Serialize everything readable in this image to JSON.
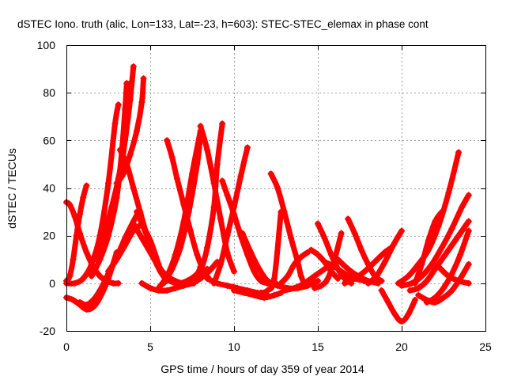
{
  "chart_data": {
    "type": "scatter",
    "title": "dSTEC Iono. truth (alic, Lon=133, Lat=-23, h=603): STEC-STEC_elemax in phase cont",
    "xlabel": "GPS time / hours of day 359 of year 2014",
    "ylabel": "dSTEC  / TECUs",
    "xlim": [
      0,
      25
    ],
    "ylim": [
      -20,
      100
    ],
    "xticks": [
      0,
      5,
      10,
      15,
      20,
      25
    ],
    "yticks": [
      -20,
      0,
      20,
      40,
      60,
      80,
      100
    ],
    "grid": true,
    "marker": "plus",
    "colors": {
      "series": "#ff0000"
    },
    "series": [
      {
        "x": [
          0.0,
          0.2,
          0.4,
          0.6,
          0.8,
          1.0,
          1.2
        ],
        "y": [
          1,
          3,
          10,
          20,
          29,
          36,
          41
        ]
      },
      {
        "x": [
          0.0,
          0.2,
          0.5,
          0.8,
          1.2,
          1.6,
          2.0,
          2.4,
          2.8,
          3.1
        ],
        "y": [
          34,
          33,
          28,
          21,
          13,
          7,
          3,
          1,
          0,
          0
        ]
      },
      {
        "x": [
          0.0,
          0.5,
          1.0,
          1.5,
          2.0,
          2.5,
          2.9,
          3.1
        ],
        "y": [
          0,
          0,
          2,
          8,
          20,
          42,
          67,
          75
        ]
      },
      {
        "x": [
          0.0,
          0.4,
          0.8,
          1.2,
          1.6,
          2.0,
          2.5,
          3.0
        ],
        "y": [
          -6,
          -7,
          -9,
          -11,
          -10,
          -6,
          2,
          13
        ]
      },
      {
        "x": [
          0.8,
          1.2,
          1.6,
          2.0,
          2.5,
          3.0,
          3.5,
          4.0,
          4.3
        ],
        "y": [
          -8,
          -9,
          -7,
          -3,
          4,
          11,
          19,
          26,
          30
        ]
      },
      {
        "x": [
          1.5,
          2.0,
          2.5,
          3.0,
          3.3,
          3.5,
          3.6
        ],
        "y": [
          3,
          10,
          20,
          36,
          55,
          73,
          84
        ]
      },
      {
        "x": [
          1.8,
          2.3,
          2.8,
          3.3,
          3.6,
          3.8
        ],
        "y": [
          10,
          20,
          32,
          50,
          67,
          84
        ]
      },
      {
        "x": [
          2.2,
          2.7,
          3.1,
          3.5,
          3.8,
          4.0
        ],
        "y": [
          20,
          32,
          44,
          60,
          77,
          91
        ]
      },
      {
        "x": [
          3.0,
          3.4,
          3.8,
          4.2,
          4.5,
          4.6
        ],
        "y": [
          42,
          46,
          54,
          64,
          76,
          86
        ]
      },
      {
        "x": [
          3.2,
          3.6,
          4.0,
          4.4,
          4.8,
          5.2,
          5.6,
          6.0
        ],
        "y": [
          56,
          50,
          40,
          30,
          20,
          11,
          5,
          1
        ]
      },
      {
        "x": [
          4.2,
          4.8,
          5.4,
          6.0,
          6.6,
          7.2,
          7.8,
          8.0
        ],
        "y": [
          30,
          20,
          9,
          2,
          0,
          1,
          4,
          7
        ]
      },
      {
        "x": [
          4.0,
          4.5,
          5.0,
          5.5,
          6.0,
          6.5,
          7.0,
          7.5,
          8.0,
          8.4
        ],
        "y": [
          25,
          19,
          13,
          7,
          3,
          1,
          0,
          1,
          3,
          6
        ]
      },
      {
        "x": [
          2.5,
          3.0,
          3.5,
          4.0,
          4.5,
          5.0,
          5.5
        ],
        "y": [
          5,
          10,
          16,
          22,
          24,
          18,
          8
        ]
      },
      {
        "x": [
          4.5,
          5.0,
          5.5,
          6.0,
          6.5,
          7.0,
          7.5,
          8.0,
          8.5,
          9.0
        ],
        "y": [
          0,
          -2,
          -3,
          -3,
          -2,
          -1,
          0,
          2,
          5,
          9
        ]
      },
      {
        "x": [
          5.5,
          6.0,
          6.5,
          7.0,
          7.5,
          8.0
        ],
        "y": [
          -2,
          3,
          12,
          26,
          46,
          64
        ]
      },
      {
        "x": [
          5.8,
          6.3,
          6.8,
          7.3,
          7.8,
          8.0
        ],
        "y": [
          0,
          6,
          15,
          30,
          50,
          62
        ]
      },
      {
        "x": [
          6.0,
          6.3,
          6.6,
          7.0,
          7.4,
          7.8,
          8.2,
          8.5
        ],
        "y": [
          60,
          53,
          44,
          33,
          22,
          12,
          5,
          2
        ]
      },
      {
        "x": [
          8.0,
          8.4,
          8.8,
          9.2,
          9.6,
          10.0
        ],
        "y": [
          66,
          56,
          42,
          27,
          13,
          5
        ]
      },
      {
        "x": [
          7.6,
          8.0,
          8.4,
          8.8,
          9.0,
          9.3
        ],
        "y": [
          0,
          5,
          15,
          32,
          50,
          67
        ]
      },
      {
        "x": [
          8.8,
          9.2,
          9.6,
          10.0,
          10.4,
          10.8
        ],
        "y": [
          0,
          8,
          20,
          32,
          45,
          57
        ]
      },
      {
        "x": [
          9.3,
          9.6,
          10.0,
          10.4,
          10.8,
          11.2,
          11.6,
          12.0
        ],
        "y": [
          43,
          37,
          29,
          20,
          12,
          5,
          1,
          0
        ]
      },
      {
        "x": [
          8.4,
          9.0,
          9.6,
          10.2,
          10.8,
          11.4,
          12.0
        ],
        "y": [
          2,
          0,
          -1,
          -2,
          -3,
          -4,
          -5
        ]
      },
      {
        "x": [
          10.5,
          11.0,
          11.5,
          12.0,
          12.5
        ],
        "y": [
          21,
          13,
          6,
          1,
          0
        ]
      },
      {
        "x": [
          10.8,
          11.2,
          11.6,
          12.0,
          12.4,
          12.8
        ],
        "y": [
          -4,
          -4,
          -4,
          -3,
          2,
          30
        ]
      },
      {
        "x": [
          10.0,
          10.6,
          11.2,
          11.8,
          12.4,
          12.8
        ],
        "y": [
          -3,
          -4,
          -5,
          -6,
          -5,
          -4
        ]
      },
      {
        "x": [
          12.2,
          12.6,
          13.0,
          13.4,
          13.8,
          14.0,
          14.2
        ],
        "y": [
          46,
          40,
          30,
          19,
          9,
          3,
          0
        ]
      },
      {
        "x": [
          12.0,
          12.6,
          13.2,
          13.8,
          14.4,
          15.0
        ],
        "y": [
          0,
          -1,
          -2,
          -2,
          -1,
          1
        ]
      },
      {
        "x": [
          12.8,
          13.2,
          13.6,
          14.0,
          14.4
        ],
        "y": [
          0,
          3,
          8,
          11,
          13
        ]
      },
      {
        "x": [
          13.0,
          13.6,
          14.2,
          14.8,
          15.4
        ],
        "y": [
          -3,
          -2,
          0,
          3,
          6
        ]
      },
      {
        "x": [
          14.6,
          15.0,
          15.4,
          15.8,
          16.2
        ],
        "y": [
          14,
          12,
          9,
          5,
          2
        ]
      },
      {
        "x": [
          15.0,
          15.4,
          15.8,
          16.2,
          16.6,
          17.0
        ],
        "y": [
          25,
          19,
          12,
          6,
          2,
          0
        ]
      },
      {
        "x": [
          14.8,
          15.2,
          15.6,
          16.0,
          16.4
        ],
        "y": [
          -2,
          -1,
          2,
          10,
          21
        ]
      },
      {
        "x": [
          15.4,
          16.0,
          16.6,
          17.2,
          17.8
        ],
        "y": [
          9,
          7,
          4,
          2,
          1
        ]
      },
      {
        "x": [
          16.2,
          16.8,
          17.4,
          18.0,
          18.6
        ],
        "y": [
          10,
          6,
          3,
          1,
          0
        ]
      },
      {
        "x": [
          16.8,
          17.2,
          17.6,
          18.0,
          18.4,
          18.8
        ],
        "y": [
          27,
          21,
          14,
          8,
          3,
          1
        ]
      },
      {
        "x": [
          16.6,
          17.2,
          17.8,
          18.4,
          19.0,
          19.4
        ],
        "y": [
          0,
          2,
          5,
          9,
          13,
          15
        ]
      },
      {
        "x": [
          18.0,
          18.5,
          19.0,
          19.5,
          20.0
        ],
        "y": [
          0,
          3,
          9,
          16,
          22
        ]
      },
      {
        "x": [
          18.8,
          19.2,
          19.6,
          20.0,
          20.4,
          20.8
        ],
        "y": [
          -3,
          -8,
          -13,
          -16,
          -13,
          -7
        ]
      },
      {
        "x": [
          19.8,
          20.4,
          21.0,
          21.6,
          22.2,
          22.8,
          23.4
        ],
        "y": [
          0,
          3,
          8,
          14,
          24,
          38,
          55
        ]
      },
      {
        "x": [
          20.0,
          20.6,
          21.2,
          21.8,
          22.4,
          23.0,
          23.6,
          24.0
        ],
        "y": [
          -1,
          0,
          3,
          8,
          15,
          23,
          32,
          37
        ]
      },
      {
        "x": [
          20.5,
          21.0,
          21.5,
          22.0,
          22.5,
          23.0,
          23.5,
          24.0
        ],
        "y": [
          -3,
          -2,
          1,
          6,
          11,
          16,
          21,
          26
        ]
      },
      {
        "x": [
          21.5,
          22.0,
          22.5,
          23.0,
          23.5,
          24.0
        ],
        "y": [
          -8,
          -6,
          -2,
          4,
          12,
          22
        ]
      },
      {
        "x": [
          21.0,
          21.5,
          22.0,
          22.5,
          23.0,
          23.5,
          24.0
        ],
        "y": [
          -5,
          -7,
          -8,
          -6,
          -3,
          2,
          8
        ]
      },
      {
        "x": [
          20.8,
          21.2,
          21.6,
          22.0,
          22.4
        ],
        "y": [
          0,
          8,
          18,
          26,
          30
        ]
      },
      {
        "x": [
          22.2,
          22.8,
          23.4,
          24.0
        ],
        "y": [
          7,
          3,
          1,
          0
        ]
      }
    ]
  }
}
